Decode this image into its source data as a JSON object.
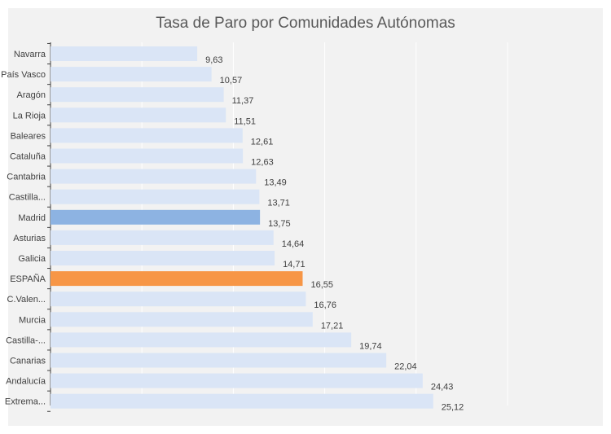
{
  "chart_data": {
    "type": "bar",
    "orientation": "horizontal",
    "title": "Tasa de Paro por Comunidades Autónomas",
    "xlabel": "",
    "ylabel": "",
    "xlim": [
      0,
      30
    ],
    "grid": true,
    "categories": [
      "Navarra",
      "País Vasco",
      "Aragón",
      "La Rioja",
      "Baleares",
      "Cataluña",
      "Cantabria",
      "Castilla...",
      "Madrid",
      "Asturias",
      "Galicia",
      "ESPAÑA",
      "C.Valen...",
      "Murcia",
      "Castilla-...",
      "Canarias",
      "Andalucía",
      "Extrema..."
    ],
    "values": [
      9.63,
      10.57,
      11.37,
      11.51,
      12.61,
      12.63,
      13.49,
      13.71,
      13.75,
      14.64,
      14.71,
      16.55,
      16.76,
      17.21,
      19.74,
      22.04,
      24.43,
      25.12
    ],
    "value_labels": [
      "9,63",
      "10,57",
      "11,37",
      "11,51",
      "12,61",
      "12,63",
      "13,49",
      "13,71",
      "13,75",
      "14,64",
      "14,71",
      "16,55",
      "16,76",
      "17,21",
      "19,74",
      "22,04",
      "24,43",
      "25,12"
    ],
    "colors": {
      "default": "#dae5f6",
      "highlight_madrid": "#8db3e2",
      "highlight_espana": "#f79646",
      "grid": "#ffffff",
      "axis": "#404040"
    },
    "highlights": {
      "Madrid": "highlight_madrid",
      "ESPAÑA": "highlight_espana"
    }
  }
}
